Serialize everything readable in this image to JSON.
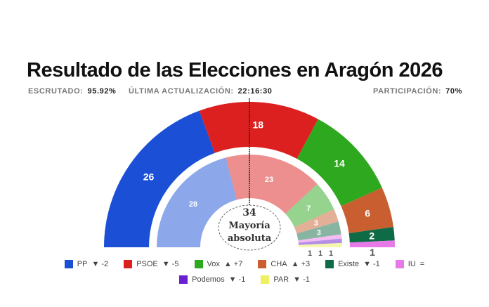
{
  "chart_data": {
    "type": "parliament",
    "title": "Resultado de las Elecciones en Aragón 2026",
    "majority": {
      "value": "34",
      "label_line1": "Mayoría",
      "label_line2": "absoluta"
    },
    "series": [
      {
        "name": "PP",
        "color": "#1a4fd6",
        "seats": 26,
        "previous": 28,
        "change": "▼ -2"
      },
      {
        "name": "PSOE",
        "color": "#dc2020",
        "seats": 18,
        "previous": 23,
        "change": "▼ -5"
      },
      {
        "name": "Vox",
        "color": "#2ea81e",
        "seats": 14,
        "previous": 7,
        "change": "▲ +7"
      },
      {
        "name": "CHA",
        "color": "#c95f30",
        "seats": 6,
        "previous": 3,
        "change": "▲ +3"
      },
      {
        "name": "Existe",
        "color": "#0f6b45",
        "seats": 2,
        "previous": 3,
        "change": "▼ -1"
      },
      {
        "name": "IU",
        "color": "#e77ae8",
        "seats": 1,
        "previous": 1,
        "change": "="
      },
      {
        "name": "Podemos",
        "color": "#6a1fd0",
        "seats": 0,
        "previous": 1,
        "change": "▼ -1"
      },
      {
        "name": "PAR",
        "color": "#eef060",
        "seats": 0,
        "previous": 1,
        "change": "▼ -1"
      }
    ]
  },
  "stats": {
    "escrutado_label": "ESCRUTADO:",
    "escrutado": "95.92%",
    "update_label": "ÚLTIMA ACTUALIZACIÓN:",
    "update": "22:16:30",
    "participacion_label": "PARTICIPACIÓN:",
    "participacion": "70%"
  }
}
